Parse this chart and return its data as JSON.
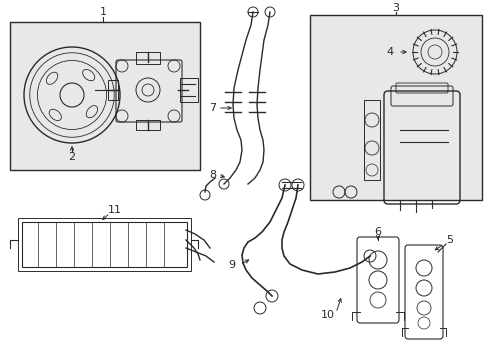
{
  "bg_color": "#ffffff",
  "box_bg": "#e8e8e8",
  "line_color": "#2a2a2a",
  "figsize": [
    4.89,
    3.6
  ],
  "dpi": 100,
  "xlim": [
    0,
    489
  ],
  "ylim": [
    0,
    360
  ]
}
